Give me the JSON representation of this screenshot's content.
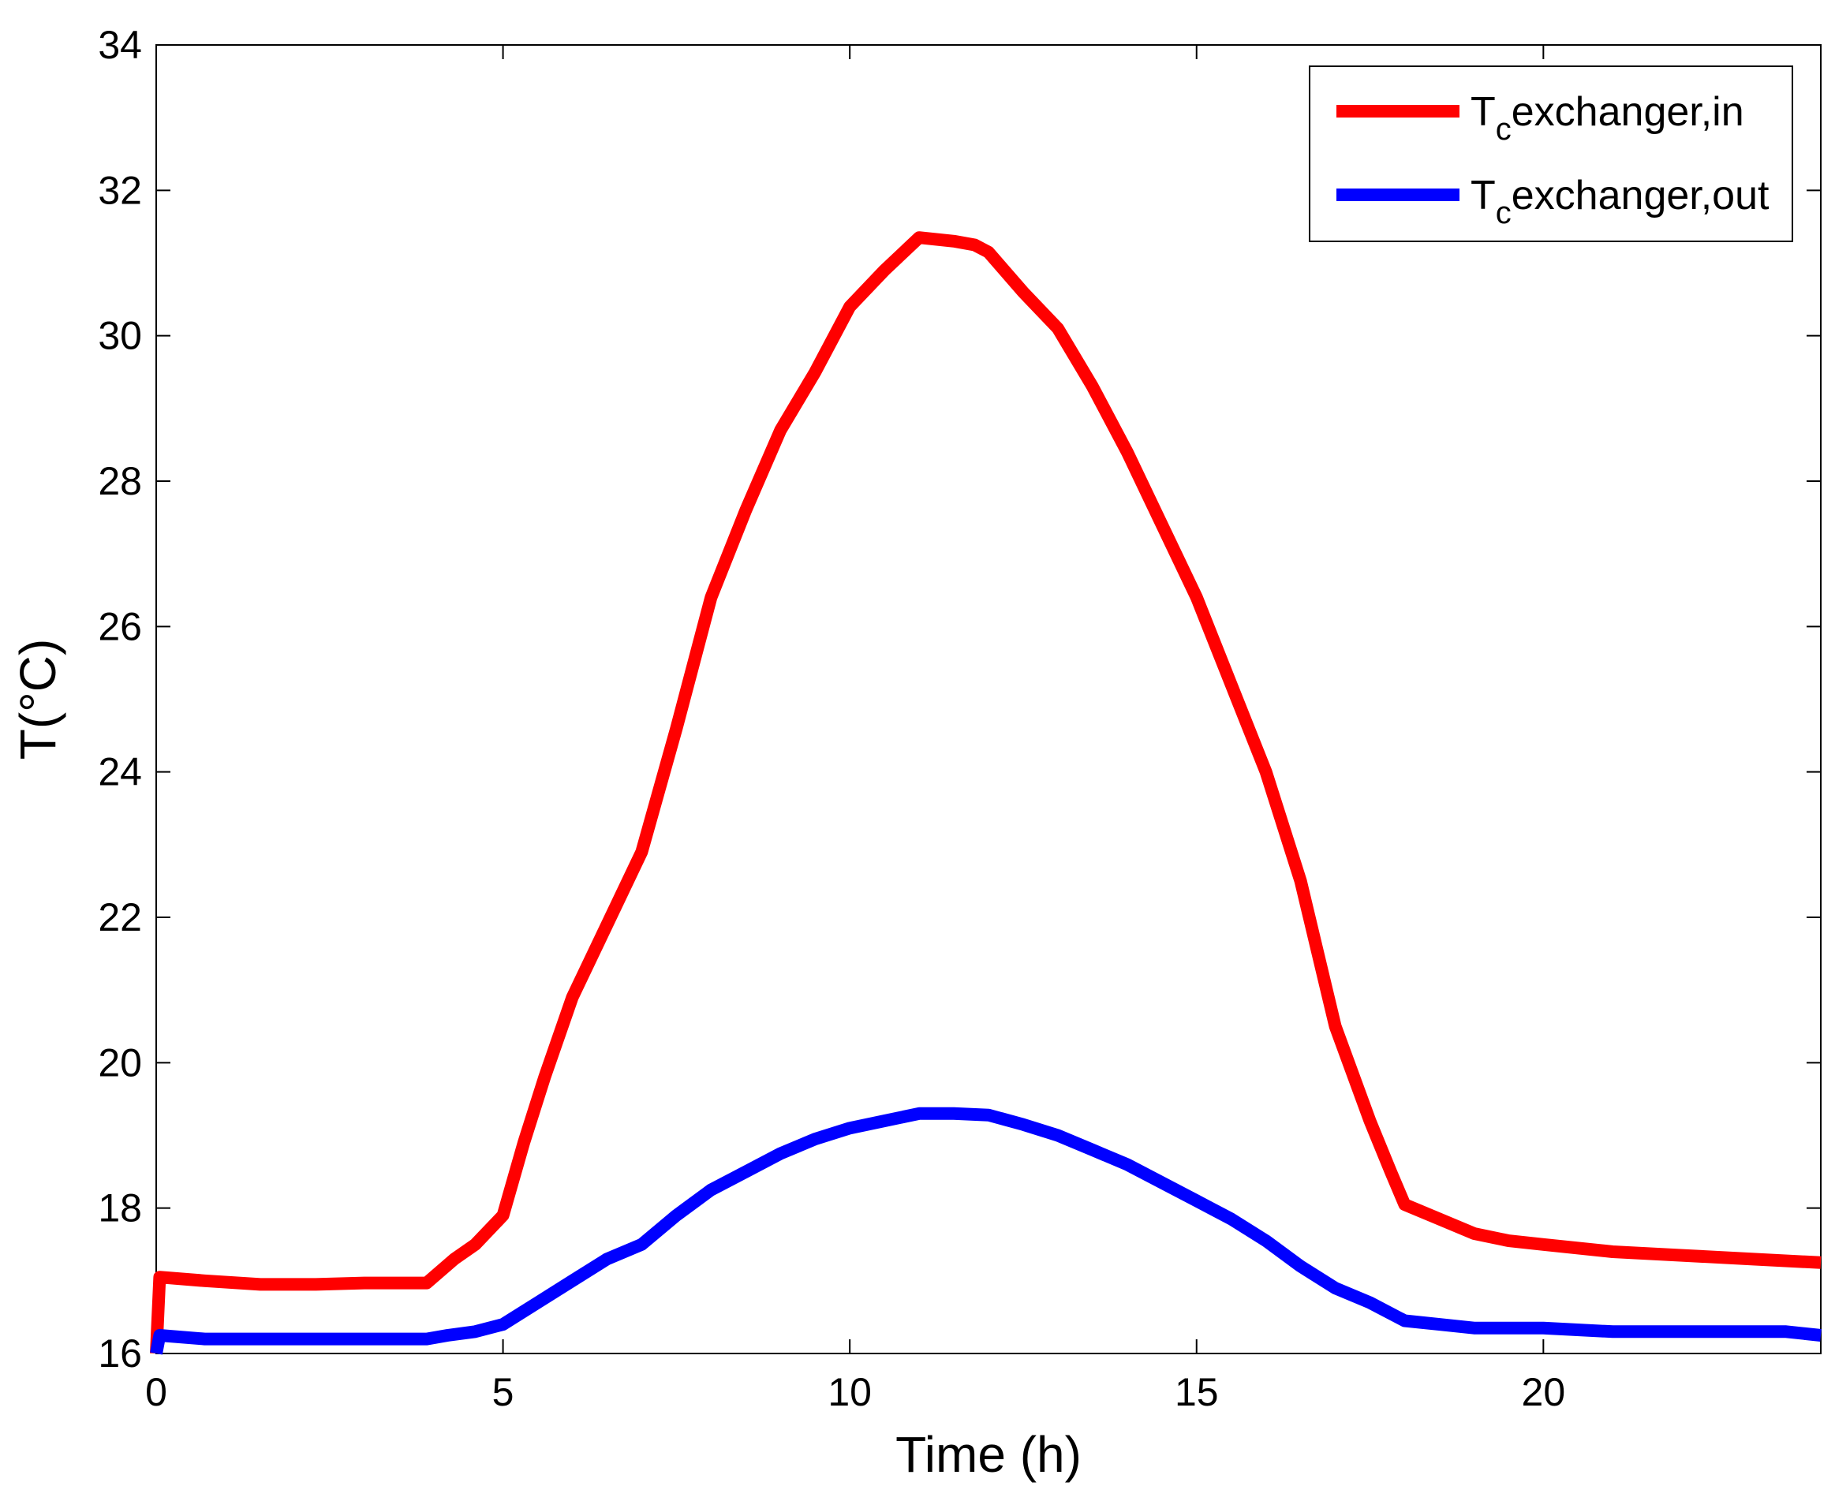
{
  "chart_data": {
    "type": "line",
    "xlabel": "Time (h)",
    "ylabel": "T(°C)",
    "xlim": [
      0,
      24
    ],
    "ylim": [
      16,
      34
    ],
    "xticks": [
      0,
      5,
      10,
      15,
      20
    ],
    "yticks": [
      16,
      18,
      20,
      22,
      24,
      26,
      28,
      30,
      32,
      34
    ],
    "grid": false,
    "legend_position": "top-right",
    "series": [
      {
        "name": "T",
        "name_subscript": "c",
        "name_suffix": "exchanger,in",
        "color": "#ff0000",
        "x": [
          0,
          0.05,
          0.7,
          1.5,
          2.0,
          2.3,
          3.0,
          3.9,
          4.3,
          4.6,
          5.0,
          5.3,
          5.6,
          6.0,
          6.5,
          7.0,
          7.5,
          8.0,
          8.5,
          9.0,
          9.5,
          10.0,
          10.5,
          11.0,
          11.5,
          11.8,
          12.0,
          12.5,
          13.0,
          13.5,
          14.0,
          14.5,
          15.0,
          15.5,
          16.0,
          16.5,
          17.0,
          17.5,
          17.8,
          18.0,
          18.5,
          19.0,
          19.5,
          20.0,
          21.0,
          22.0,
          23.0,
          24.0
        ],
        "y": [
          16.0,
          17.05,
          17.0,
          16.95,
          16.95,
          16.95,
          16.97,
          16.97,
          17.3,
          17.5,
          17.9,
          18.9,
          19.8,
          20.9,
          21.9,
          22.9,
          24.6,
          26.4,
          27.6,
          28.7,
          29.5,
          30.4,
          30.9,
          31.35,
          31.3,
          31.25,
          31.15,
          30.6,
          30.1,
          29.3,
          28.4,
          27.4,
          26.4,
          25.2,
          24.0,
          22.5,
          20.5,
          19.2,
          18.5,
          18.05,
          17.85,
          17.65,
          17.55,
          17.5,
          17.4,
          17.35,
          17.3,
          17.25
        ]
      },
      {
        "name": "T",
        "name_subscript": "c",
        "name_suffix": "exchanger,out",
        "color": "#0000ff",
        "x": [
          0,
          0.05,
          0.7,
          2.0,
          3.0,
          3.9,
          4.2,
          4.6,
          5.0,
          5.5,
          6.0,
          6.5,
          7.0,
          7.5,
          8.0,
          8.5,
          9.0,
          9.5,
          10.0,
          10.5,
          11.0,
          11.5,
          12.0,
          12.5,
          13.0,
          13.5,
          14.0,
          14.5,
          15.0,
          15.5,
          16.0,
          16.5,
          17.0,
          17.5,
          18.0,
          18.5,
          19.0,
          20.0,
          21.0,
          22.0,
          23.0,
          23.5,
          24.0
        ],
        "y": [
          16.0,
          16.25,
          16.2,
          16.2,
          16.2,
          16.2,
          16.25,
          16.3,
          16.4,
          16.7,
          17.0,
          17.3,
          17.5,
          17.9,
          18.25,
          18.5,
          18.75,
          18.95,
          19.1,
          19.2,
          19.3,
          19.3,
          19.28,
          19.15,
          19.0,
          18.8,
          18.6,
          18.35,
          18.1,
          17.85,
          17.55,
          17.2,
          16.9,
          16.7,
          16.45,
          16.4,
          16.35,
          16.35,
          16.3,
          16.3,
          16.3,
          16.3,
          16.25
        ]
      }
    ]
  }
}
